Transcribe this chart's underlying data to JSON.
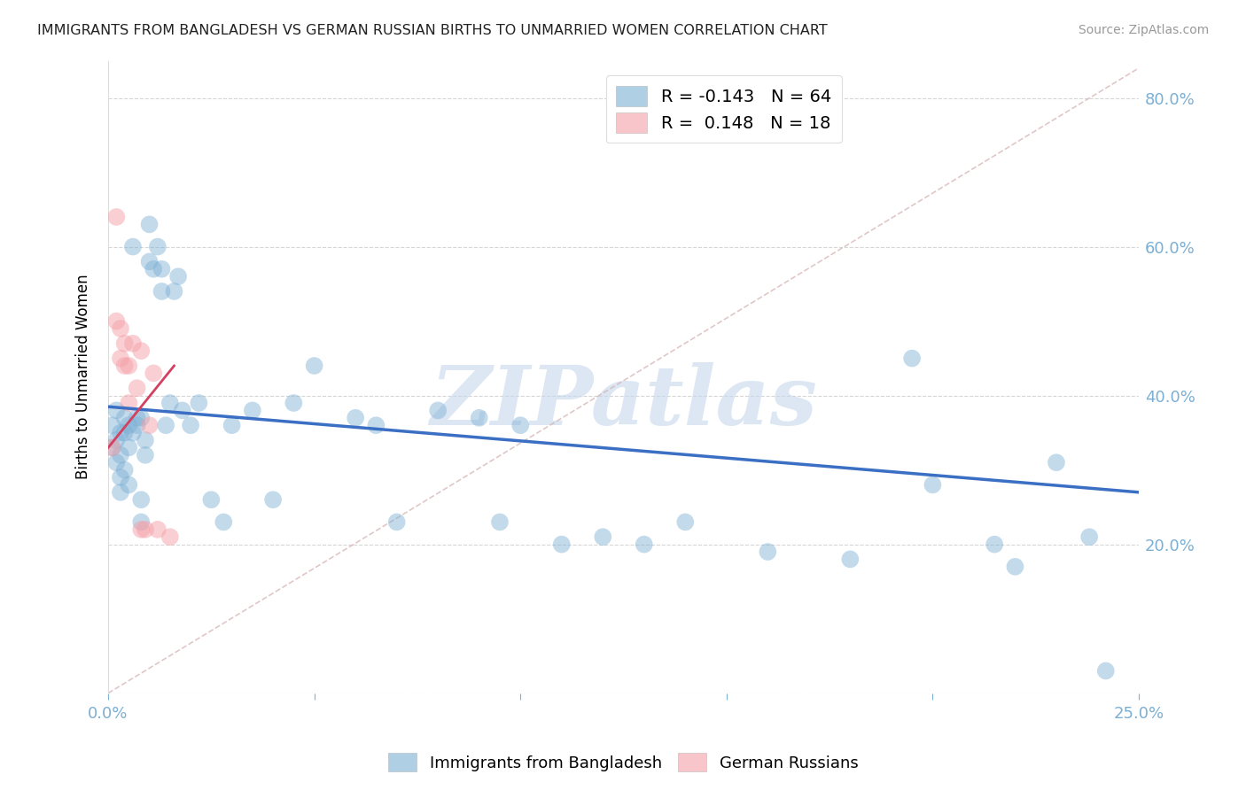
{
  "title": "IMMIGRANTS FROM BANGLADESH VS GERMAN RUSSIAN BIRTHS TO UNMARRIED WOMEN CORRELATION CHART",
  "source": "Source: ZipAtlas.com",
  "ylabel": "Births to Unmarried Women",
  "xlabel_legend1": "Immigrants from Bangladesh",
  "xlabel_legend2": "German Russians",
  "legend1_R": "-0.143",
  "legend1_N": "64",
  "legend2_R": "0.148",
  "legend2_N": "18",
  "xlim": [
    0.0,
    0.25
  ],
  "ylim": [
    0.0,
    0.85
  ],
  "xticks": [
    0.0,
    0.05,
    0.1,
    0.15,
    0.2,
    0.25
  ],
  "yticks": [
    0.0,
    0.2,
    0.4,
    0.6,
    0.8
  ],
  "blue_color": "#7BAFD4",
  "pink_color": "#F4A0A8",
  "blue_line_color": "#3A6FC4",
  "pink_line_color": "#D44060",
  "axis_color": "#7BAFD4",
  "grid_color": "#CCCCCC",
  "watermark_color": "#C5D8EC",
  "blue_scatter_x": [
    0.001,
    0.001,
    0.002,
    0.002,
    0.002,
    0.003,
    0.003,
    0.003,
    0.003,
    0.004,
    0.004,
    0.004,
    0.005,
    0.005,
    0.005,
    0.006,
    0.006,
    0.007,
    0.007,
    0.008,
    0.008,
    0.008,
    0.009,
    0.009,
    0.01,
    0.01,
    0.011,
    0.012,
    0.013,
    0.013,
    0.014,
    0.015,
    0.016,
    0.017,
    0.018,
    0.02,
    0.022,
    0.025,
    0.028,
    0.03,
    0.035,
    0.04,
    0.045,
    0.05,
    0.06,
    0.065,
    0.07,
    0.08,
    0.09,
    0.095,
    0.1,
    0.11,
    0.12,
    0.13,
    0.14,
    0.16,
    0.18,
    0.195,
    0.2,
    0.215,
    0.22,
    0.23,
    0.238,
    0.242
  ],
  "blue_scatter_y": [
    0.36,
    0.33,
    0.38,
    0.34,
    0.31,
    0.35,
    0.32,
    0.29,
    0.27,
    0.37,
    0.35,
    0.3,
    0.36,
    0.33,
    0.28,
    0.6,
    0.35,
    0.37,
    0.36,
    0.37,
    0.23,
    0.26,
    0.34,
    0.32,
    0.63,
    0.58,
    0.57,
    0.6,
    0.57,
    0.54,
    0.36,
    0.39,
    0.54,
    0.56,
    0.38,
    0.36,
    0.39,
    0.26,
    0.23,
    0.36,
    0.38,
    0.26,
    0.39,
    0.44,
    0.37,
    0.36,
    0.23,
    0.38,
    0.37,
    0.23,
    0.36,
    0.2,
    0.21,
    0.2,
    0.23,
    0.19,
    0.18,
    0.45,
    0.28,
    0.2,
    0.17,
    0.31,
    0.21,
    0.03
  ],
  "pink_scatter_x": [
    0.001,
    0.002,
    0.002,
    0.003,
    0.003,
    0.004,
    0.004,
    0.005,
    0.005,
    0.006,
    0.007,
    0.008,
    0.008,
    0.009,
    0.01,
    0.011,
    0.012,
    0.015
  ],
  "pink_scatter_y": [
    0.33,
    0.64,
    0.5,
    0.49,
    0.45,
    0.44,
    0.47,
    0.44,
    0.39,
    0.47,
    0.41,
    0.22,
    0.46,
    0.22,
    0.36,
    0.43,
    0.22,
    0.21
  ],
  "blue_trend_x": [
    0.0,
    0.25
  ],
  "blue_trend_y": [
    0.385,
    0.27
  ],
  "pink_trend_x": [
    0.0,
    0.016
  ],
  "pink_trend_y": [
    0.33,
    0.44
  ],
  "ref_line_x": [
    0.0,
    0.25
  ],
  "ref_line_y": [
    0.0,
    0.84
  ]
}
